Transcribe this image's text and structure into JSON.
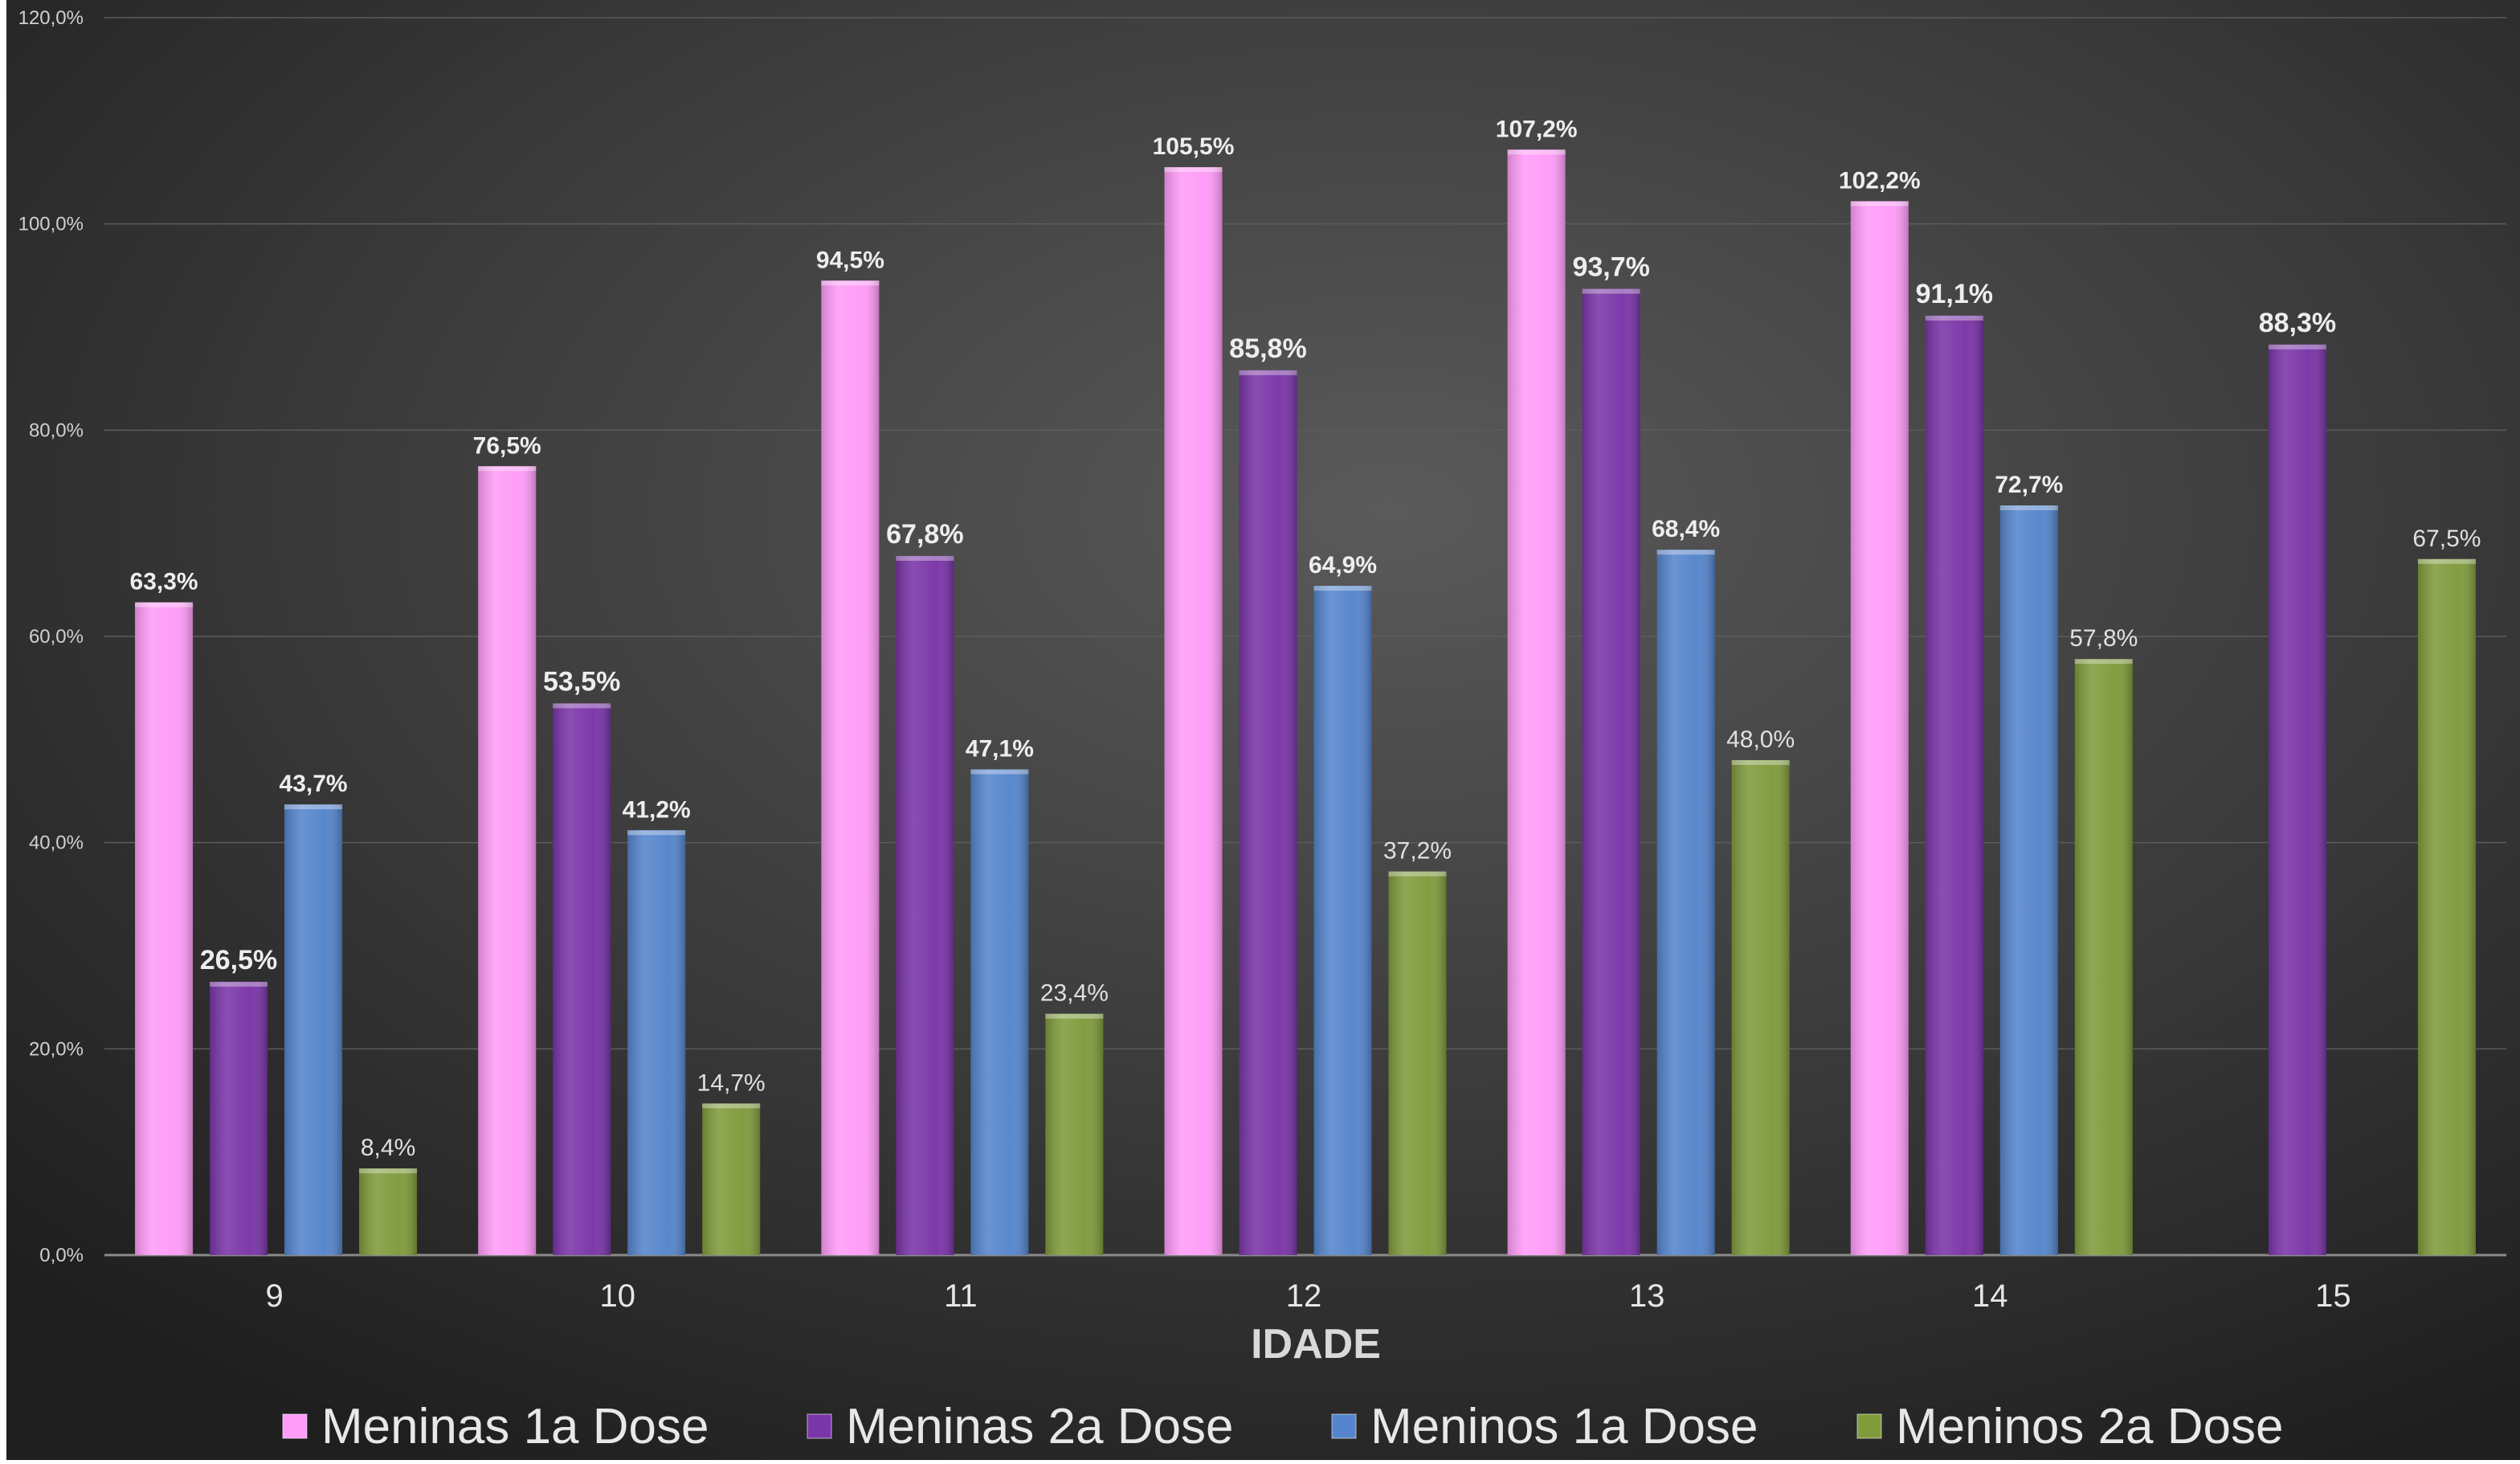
{
  "chart_data": {
    "type": "bar",
    "title": "",
    "xlabel": "IDADE",
    "ylabel": "",
    "ylim": [
      0,
      120
    ],
    "y_ticks": [
      0,
      20,
      40,
      60,
      80,
      100,
      120
    ],
    "y_tick_labels": [
      "0,0%",
      "20,0%",
      "40,0%",
      "60,0%",
      "80,0%",
      "100,0%",
      "120,0%"
    ],
    "grid": true,
    "legend_position": "bottom",
    "categories": [
      "9",
      "10",
      "11",
      "12",
      "13",
      "14",
      "15"
    ],
    "series": [
      {
        "name": "Meninas 1a Dose",
        "color": "#ff9cf8",
        "values": [
          63.3,
          76.5,
          94.5,
          105.5,
          107.2,
          102.2,
          null
        ],
        "labels": [
          "63,3%",
          "76,5%",
          "94,5%",
          "105,5%",
          "107,2%",
          "102,2%",
          ""
        ]
      },
      {
        "name": "Meninas 2a Dose",
        "color": "#7a35a8",
        "values": [
          26.5,
          53.5,
          67.8,
          85.8,
          93.7,
          91.1,
          88.3
        ],
        "labels": [
          "26,5%",
          "53,5%",
          "67,8%",
          "85,8%",
          "93,7%",
          "91,1%",
          "88,3%"
        ]
      },
      {
        "name": "Meninos 1a Dose",
        "color": "#5585cc",
        "values": [
          43.7,
          41.2,
          47.1,
          64.9,
          68.4,
          72.7,
          null
        ],
        "labels": [
          "43,7%",
          "41,2%",
          "47,1%",
          "64,9%",
          "68,4%",
          "72,7%",
          ""
        ]
      },
      {
        "name": "Meninos 2a Dose",
        "color": "#7f9b3c",
        "values": [
          8.4,
          14.7,
          23.4,
          37.2,
          48.0,
          57.8,
          67.5
        ],
        "labels": [
          "8,4%",
          "14,7%",
          "23,4%",
          "37,2%",
          "48,0%",
          "57,8%",
          "67,5%"
        ]
      }
    ]
  }
}
